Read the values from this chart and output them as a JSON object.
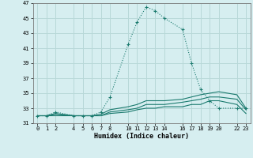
{
  "xlabel": "Humidex (Indice chaleur)",
  "bg_color": "#d6eef0",
  "grid_color": "#b8d8d8",
  "line_color": "#1a7a6e",
  "xlim": [
    -0.5,
    23.5
  ],
  "ylim": [
    31,
    47
  ],
  "xticks": [
    0,
    1,
    2,
    4,
    5,
    6,
    7,
    8,
    10,
    11,
    12,
    13,
    14,
    16,
    17,
    18,
    19,
    20,
    22,
    23
  ],
  "yticks": [
    31,
    33,
    35,
    37,
    39,
    41,
    43,
    45,
    47
  ],
  "series_main": {
    "x": [
      0,
      1,
      2,
      4,
      5,
      6,
      7,
      8,
      10,
      11,
      12,
      13,
      14,
      16,
      17,
      18,
      19,
      20,
      22,
      23
    ],
    "y": [
      32.0,
      32.0,
      32.5,
      32.0,
      32.0,
      32.0,
      32.5,
      34.5,
      41.5,
      44.5,
      46.5,
      46.0,
      45.0,
      43.5,
      39.0,
      35.5,
      34.0,
      33.0,
      33.0,
      33.0
    ]
  },
  "series_flat": [
    {
      "x": [
        0,
        1,
        2,
        4,
        5,
        6,
        7,
        8,
        10,
        11,
        12,
        13,
        14,
        16,
        17,
        18,
        19,
        20,
        22,
        23
      ],
      "y": [
        32.0,
        32.0,
        32.3,
        32.0,
        32.0,
        32.0,
        32.2,
        32.8,
        33.2,
        33.5,
        34.0,
        34.0,
        34.0,
        34.2,
        34.5,
        34.8,
        35.0,
        35.2,
        34.8,
        33.0
      ]
    },
    {
      "x": [
        0,
        1,
        2,
        4,
        5,
        6,
        7,
        8,
        10,
        11,
        12,
        13,
        14,
        16,
        17,
        18,
        19,
        20,
        22,
        23
      ],
      "y": [
        32.0,
        32.0,
        32.2,
        32.0,
        32.0,
        32.0,
        32.0,
        32.5,
        32.8,
        33.0,
        33.5,
        33.5,
        33.5,
        33.8,
        34.0,
        34.2,
        34.5,
        34.5,
        34.2,
        32.8
      ]
    },
    {
      "x": [
        0,
        1,
        2,
        4,
        5,
        6,
        7,
        8,
        10,
        11,
        12,
        13,
        14,
        16,
        17,
        18,
        19,
        20,
        22,
        23
      ],
      "y": [
        32.0,
        32.0,
        32.0,
        32.0,
        32.0,
        32.0,
        32.0,
        32.3,
        32.5,
        32.8,
        33.0,
        33.0,
        33.2,
        33.2,
        33.5,
        33.5,
        34.0,
        34.0,
        33.5,
        32.3
      ]
    }
  ]
}
